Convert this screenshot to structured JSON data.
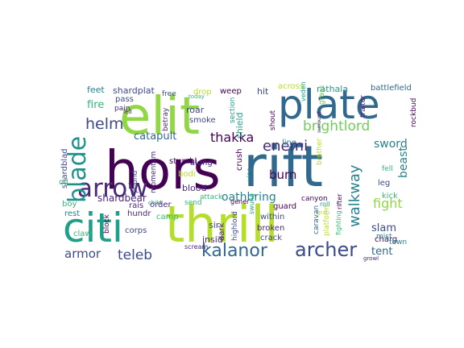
{
  "palette": {
    "yellow_green": "#b5de2b",
    "green": "#6ece58",
    "light_green": "#90d743",
    "teal": "#1f9e89",
    "sea": "#26828e",
    "blue": "#31688e",
    "indigo": "#3e4989",
    "purple": "#482878",
    "dark": "#440154",
    "aqua": "#35b779",
    "cyan": "#21918c"
  },
  "words": [
    {
      "text": "hors"
    },
    {
      "text": "rift"
    },
    {
      "text": "elit"
    },
    {
      "text": "thrill"
    },
    {
      "text": "plate"
    },
    {
      "text": "citi"
    },
    {
      "text": "arrow"
    },
    {
      "text": "blade"
    },
    {
      "text": "kalanor"
    },
    {
      "text": "archer"
    },
    {
      "text": "brightlord"
    },
    {
      "text": "helm"
    },
    {
      "text": "walkway"
    },
    {
      "text": "teleb"
    },
    {
      "text": "armor"
    },
    {
      "text": "enemi"
    },
    {
      "text": "thakka"
    },
    {
      "text": "sword"
    },
    {
      "text": "oathbring"
    },
    {
      "text": "fight"
    },
    {
      "text": "burn"
    },
    {
      "text": "beast"
    },
    {
      "text": "catapult"
    },
    {
      "text": "shardbear"
    },
    {
      "text": "slam"
    },
    {
      "text": "tent"
    },
    {
      "text": "fire"
    },
    {
      "text": "feet"
    },
    {
      "text": "shardplat"
    },
    {
      "text": "drop"
    },
    {
      "text": "weep"
    },
    {
      "text": "hit"
    },
    {
      "text": "across"
    },
    {
      "text": "rathala"
    },
    {
      "text": "battlefield"
    },
    {
      "text": "pass"
    },
    {
      "text": "pain"
    },
    {
      "text": "led"
    },
    {
      "text": "free"
    },
    {
      "text": "roar"
    },
    {
      "text": "smoke"
    },
    {
      "text": "betray"
    },
    {
      "text": "section"
    },
    {
      "text": "shield"
    },
    {
      "text": "shout"
    },
    {
      "text": "veden"
    },
    {
      "text": "grass"
    },
    {
      "text": "traitor"
    },
    {
      "text": "rockbud"
    },
    {
      "text": "today"
    },
    {
      "text": "line"
    },
    {
      "text": "brother"
    },
    {
      "text": "stumbl"
    },
    {
      "text": "blood"
    },
    {
      "text": "bodi"
    },
    {
      "text": "along"
    },
    {
      "text": "crush"
    },
    {
      "text": "vine"
    },
    {
      "text": "momentum"
    },
    {
      "text": "pound"
    },
    {
      "text": "shardblad"
    },
    {
      "text": "oil"
    },
    {
      "text": "boy"
    },
    {
      "text": "rest"
    },
    {
      "text": "rais"
    },
    {
      "text": "order"
    },
    {
      "text": "hundr"
    },
    {
      "text": "camp"
    },
    {
      "text": "send"
    },
    {
      "text": "attack"
    },
    {
      "text": "gener"
    },
    {
      "text": "swung"
    },
    {
      "text": "guard"
    },
    {
      "text": "canyon"
    },
    {
      "text": "roll"
    },
    {
      "text": "grab"
    },
    {
      "text": "rifter"
    },
    {
      "text": "leg"
    },
    {
      "text": "kick"
    },
    {
      "text": "fell"
    },
    {
      "text": "charg"
    },
    {
      "text": "mist"
    },
    {
      "text": "town"
    },
    {
      "text": "growl"
    },
    {
      "text": "fighting"
    },
    {
      "text": "caravan"
    },
    {
      "text": "platform"
    },
    {
      "text": "broken"
    },
    {
      "text": "crack"
    },
    {
      "text": "within"
    },
    {
      "text": "highlord"
    },
    {
      "text": "dark"
    },
    {
      "text": "sir"
    },
    {
      "text": "insid"
    },
    {
      "text": "scream"
    },
    {
      "text": "corps"
    },
    {
      "text": "claw"
    },
    {
      "text": "block"
    },
    {
      "text": "child"
    },
    {
      "text": "surround"
    }
  ]
}
